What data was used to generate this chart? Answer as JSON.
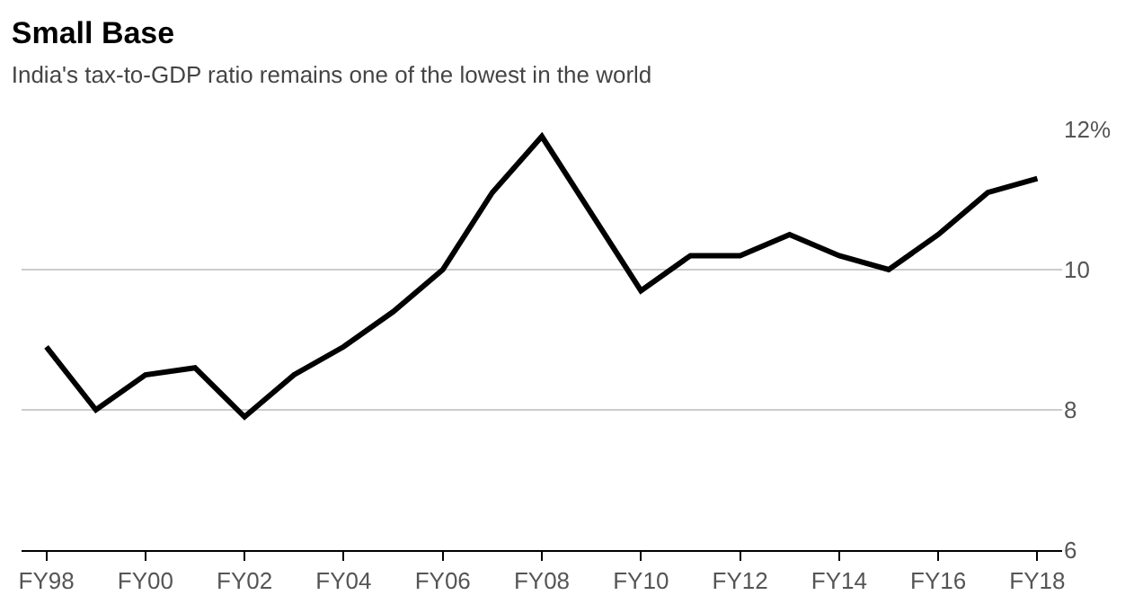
{
  "chart_data": {
    "type": "line",
    "title": "Small Base",
    "subtitle": "India's tax-to-GDP ratio remains one of the lowest in the world",
    "categories": [
      "FY98",
      null,
      "FY00",
      null,
      "FY02",
      null,
      "FY04",
      null,
      "FY06",
      null,
      "FY08",
      null,
      "FY10",
      null,
      "FY12",
      null,
      "FY14",
      null,
      "FY16",
      null,
      "FY18"
    ],
    "series": [
      {
        "color": "#000000",
        "values": [
          8.9,
          8.0,
          8.5,
          8.6,
          7.9,
          8.5,
          8.9,
          9.4,
          10.0,
          11.1,
          11.9,
          10.8,
          9.7,
          10.2,
          10.2,
          10.5,
          10.2,
          10.0,
          10.5,
          11.1,
          11.3
        ]
      }
    ],
    "ylim": [
      6,
      12
    ],
    "yticks": [
      6,
      8,
      10,
      {
        "value": 12,
        "label": "12%"
      }
    ],
    "grid": "y",
    "legend": false,
    "marker": "none",
    "line_style": "solid"
  }
}
